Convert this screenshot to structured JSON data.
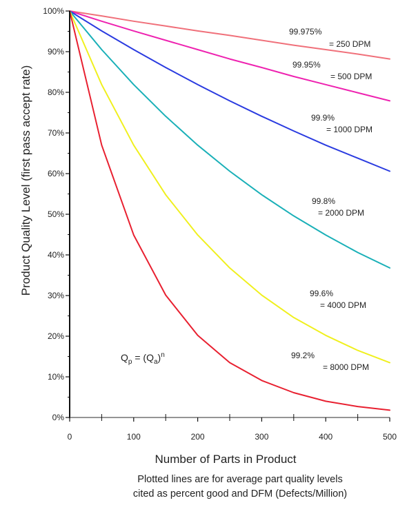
{
  "chart_data": {
    "type": "line",
    "xlabel": "Number of Parts in Product",
    "ylabel": "Product Quality Level (first pass accept rate)",
    "caption_lines": [
      "Plotted lines are for average part quality levels",
      "cited as percent good and DFM (Defects/Million)"
    ],
    "formula": {
      "base": "Q",
      "sub1": "p",
      "mid": " = (Q",
      "sub2": "a",
      "close": ")",
      "sup": "n"
    },
    "xlim": [
      0,
      500
    ],
    "ylim": [
      0,
      100
    ],
    "x_ticks": [
      0,
      100,
      200,
      300,
      400,
      500
    ],
    "x_tick_labels": [
      "0",
      "100",
      "200",
      "300",
      "400",
      "500"
    ],
    "y_ticks": [
      0,
      10,
      20,
      30,
      40,
      50,
      60,
      70,
      80,
      90,
      100
    ],
    "y_tick_labels": [
      "0%",
      "10%",
      "20%",
      "30%",
      "40%",
      "50%",
      "60%",
      "70%",
      "80%",
      "90%",
      "100%"
    ],
    "grid": false,
    "x": [
      0,
      50,
      100,
      150,
      200,
      250,
      300,
      350,
      400,
      450,
      500
    ],
    "series": [
      {
        "label_line1": "99.975%",
        "label_line2": "= 250 DPM",
        "color": "#f0707a",
        "values": [
          100,
          98.8,
          97.5,
          96.3,
          95.1,
          94.0,
          92.8,
          91.6,
          90.5,
          89.4,
          88.2
        ]
      },
      {
        "label_line1": "99.95%",
        "label_line2": "= 500 DPM",
        "color": "#ee22b0",
        "values": [
          100,
          97.5,
          95.1,
          92.8,
          90.5,
          88.2,
          86.1,
          83.9,
          81.9,
          79.9,
          77.9
        ]
      },
      {
        "label_line1": "99.9%",
        "label_line2": "= 1000 DPM",
        "color": "#2a3be0",
        "values": [
          100,
          95.1,
          90.5,
          86.1,
          81.9,
          77.9,
          74.1,
          70.5,
          67.0,
          63.8,
          60.6
        ]
      },
      {
        "label_line1": "99.8%",
        "label_line2": "= 2000 DPM",
        "color": "#1ab0b8",
        "values": [
          100,
          90.5,
          81.9,
          74.1,
          67.0,
          60.6,
          54.8,
          49.6,
          44.9,
          40.6,
          36.8
        ]
      },
      {
        "label_line1": "99.6%",
        "label_line2": "= 4000 DPM",
        "color": "#f0f01e",
        "values": [
          100,
          81.9,
          67.0,
          54.8,
          44.9,
          36.8,
          30.1,
          24.6,
          20.2,
          16.5,
          13.5
        ]
      },
      {
        "label_line1": "99.2%",
        "label_line2": "= 8000 DPM",
        "color": "#e82030",
        "values": [
          100,
          67.0,
          44.9,
          30.1,
          20.2,
          13.5,
          9.1,
          6.1,
          4.0,
          2.7,
          1.8
        ]
      }
    ]
  }
}
